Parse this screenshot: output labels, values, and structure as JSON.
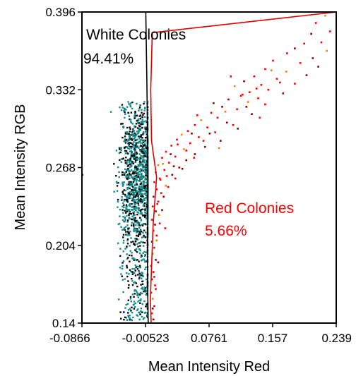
{
  "chart_data": {
    "type": "scatter",
    "xlabel": "Mean Intensity Red",
    "ylabel": "Mean Intensity RGB",
    "x_ticks": [
      "-0.0866",
      "-0.00523",
      "0.0761",
      "0.157",
      "0.239"
    ],
    "y_ticks": [
      "0.14",
      "0.204",
      "0.268",
      "0.332",
      "0.396"
    ],
    "xlim": [
      -0.0866,
      0.239
    ],
    "ylim": [
      0.14,
      0.396
    ],
    "grid": false,
    "annotations": [
      {
        "name": "White Colonies",
        "text": "White Colonies",
        "value": "94.41%",
        "color": "#000000"
      },
      {
        "name": "Red Colonies",
        "text": "Red Colonies",
        "value": "5.66%",
        "color": "#ff0000"
      }
    ],
    "gates": {
      "black_boundary": {
        "color": "#000000",
        "points": [
          [
            -0.0048,
            0.396
          ],
          [
            -0.0035,
            0.34
          ],
          [
            -0.0025,
            0.29
          ],
          [
            -0.002,
            0.25
          ],
          [
            -0.0028,
            0.2
          ],
          [
            -0.0025,
            0.17
          ],
          [
            -0.0018,
            0.14
          ]
        ]
      },
      "red_boundary": {
        "color": "#e00000",
        "points": [
          [
            0.239,
            0.396
          ],
          [
            0.0035,
            0.379
          ],
          [
            0.0015,
            0.332
          ],
          [
            0.0025,
            0.29
          ],
          [
            0.009,
            0.26
          ],
          [
            0.0045,
            0.22
          ],
          [
            0.001,
            0.16
          ],
          [
            0.002,
            0.14
          ]
        ]
      }
    },
    "series": [
      {
        "name": "White Colonies",
        "color_primary": "#138a8a",
        "color_secondary": "#000000",
        "distribution": {
          "x_center": -0.014,
          "x_spread": 0.012,
          "y_min": 0.142,
          "y_max": 0.322,
          "y_peak": 0.262,
          "count": 1500
        }
      },
      {
        "name": "Red Colonies",
        "colors": [
          "#ff0000",
          "#8b0000",
          "#ff8000"
        ],
        "points": [
          [
            0.225,
            0.393
          ],
          [
            0.213,
            0.387
          ],
          [
            0.231,
            0.38
          ],
          [
            0.207,
            0.378
          ],
          [
            0.22,
            0.371
          ],
          [
            0.198,
            0.37
          ],
          [
            0.186,
            0.366
          ],
          [
            0.227,
            0.364
          ],
          [
            0.176,
            0.362
          ],
          [
            0.209,
            0.358
          ],
          [
            0.158,
            0.356
          ],
          [
            0.193,
            0.354
          ],
          [
            0.216,
            0.351
          ],
          [
            0.148,
            0.349
          ],
          [
            0.175,
            0.347
          ],
          [
            0.201,
            0.344
          ],
          [
            0.134,
            0.343
          ],
          [
            0.163,
            0.341
          ],
          [
            0.121,
            0.339
          ],
          [
            0.186,
            0.337
          ],
          [
            0.143,
            0.336
          ],
          [
            0.109,
            0.335
          ],
          [
            0.152,
            0.332
          ],
          [
            0.128,
            0.33
          ],
          [
            0.171,
            0.329
          ],
          [
            0.117,
            0.327
          ],
          [
            0.139,
            0.325
          ],
          [
            0.101,
            0.324
          ],
          [
            0.126,
            0.322
          ],
          [
            0.148,
            0.32
          ],
          [
            0.093,
            0.318
          ],
          [
            0.112,
            0.316
          ],
          [
            0.079,
            0.313
          ],
          [
            0.131,
            0.312
          ],
          [
            0.087,
            0.309
          ],
          [
            0.066,
            0.307
          ],
          [
            0.099,
            0.305
          ],
          [
            0.058,
            0.303
          ],
          [
            0.074,
            0.301
          ],
          [
            0.113,
            0.3
          ],
          [
            0.049,
            0.298
          ],
          [
            0.084,
            0.297
          ],
          [
            0.041,
            0.295
          ],
          [
            0.063,
            0.293
          ],
          [
            0.035,
            0.291
          ],
          [
            0.091,
            0.29
          ],
          [
            0.052,
            0.288
          ],
          [
            0.028,
            0.286
          ],
          [
            0.071,
            0.285
          ],
          [
            0.044,
            0.283
          ],
          [
            0.021,
            0.281
          ],
          [
            0.058,
            0.279
          ],
          [
            0.033,
            0.277
          ],
          [
            0.016,
            0.276
          ],
          [
            0.047,
            0.274
          ],
          [
            0.025,
            0.272
          ],
          [
            0.011,
            0.27
          ],
          [
            0.038,
            0.268
          ],
          [
            0.019,
            0.266
          ],
          [
            0.008,
            0.264
          ],
          [
            0.029,
            0.262
          ],
          [
            0.013,
            0.259
          ],
          [
            0.006,
            0.256
          ],
          [
            0.021,
            0.253
          ],
          [
            0.009,
            0.25
          ],
          [
            0.015,
            0.247
          ],
          [
            0.005,
            0.244
          ],
          [
            0.011,
            0.24
          ],
          [
            0.004,
            0.236
          ],
          [
            0.008,
            0.232
          ],
          [
            0.012,
            0.229
          ],
          [
            0.003,
            0.225
          ],
          [
            0.007,
            0.221
          ],
          [
            0.005,
            0.216
          ],
          [
            0.009,
            0.212
          ],
          [
            0.003,
            0.207
          ],
          [
            0.006,
            0.202
          ],
          [
            0.004,
            0.197
          ],
          [
            0.008,
            0.192
          ],
          [
            0.002,
            0.187
          ],
          [
            0.005,
            0.182
          ],
          [
            0.003,
            0.176
          ],
          [
            0.007,
            0.171
          ],
          [
            0.002,
            0.165
          ],
          [
            0.004,
            0.16
          ],
          [
            0.006,
            0.154
          ],
          [
            0.003,
            0.148
          ],
          [
            0.005,
            0.143
          ],
          [
            0.104,
            0.343
          ],
          [
            0.119,
            0.328
          ],
          [
            0.082,
            0.321
          ],
          [
            0.097,
            0.314
          ],
          [
            0.061,
            0.311
          ],
          [
            0.054,
            0.296
          ],
          [
            0.069,
            0.29
          ],
          [
            0.036,
            0.287
          ],
          [
            0.027,
            0.279
          ],
          [
            0.047,
            0.282
          ],
          [
            0.017,
            0.271
          ],
          [
            0.031,
            0.269
          ],
          [
            0.014,
            0.258
          ],
          [
            0.022,
            0.261
          ],
          [
            0.018,
            0.244
          ],
          [
            0.01,
            0.238
          ],
          [
            0.013,
            0.222
          ],
          [
            0.156,
            0.348
          ],
          [
            0.137,
            0.333
          ],
          [
            0.167,
            0.338
          ],
          [
            0.124,
            0.318
          ],
          [
            0.141,
            0.309
          ],
          [
            0.107,
            0.303
          ],
          [
            0.077,
            0.296
          ],
          [
            0.089,
            0.284
          ],
          [
            0.057,
            0.276
          ],
          [
            0.042,
            0.267
          ],
          [
            0.033,
            0.259
          ],
          [
            0.024,
            0.252
          ],
          [
            0.016,
            0.233
          ],
          [
            0.02,
            0.218
          ],
          [
            0.009,
            0.208
          ],
          [
            0.011,
            0.19
          ],
          [
            0.006,
            0.178
          ],
          [
            0.008,
            0.168
          ],
          [
            0.004,
            0.152
          ]
        ]
      }
    ],
    "minor_points": {
      "color": "#0000cc",
      "points": [
        [
          -0.086,
          0.262
        ],
        [
          -0.033,
          0.149
        ]
      ]
    }
  }
}
